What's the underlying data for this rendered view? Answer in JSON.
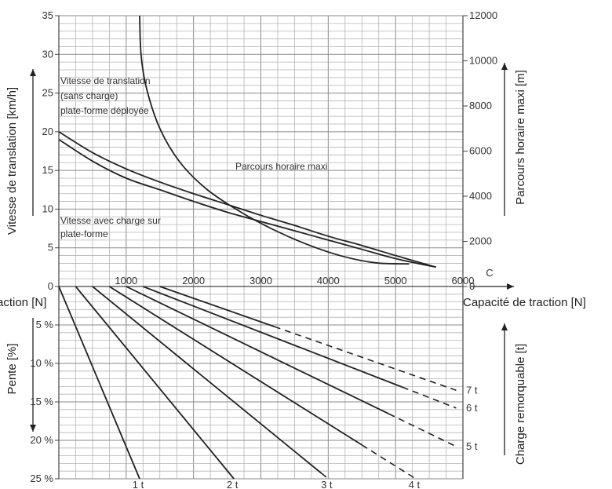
{
  "chart_data": [
    {
      "type": "line",
      "title": "",
      "xlabel": "Capacité de traction [N]",
      "x_axis_label_left": "action [N]",
      "x_axis_letter": "C",
      "xlim": [
        0,
        6000
      ],
      "ylim_left": [
        0,
        35
      ],
      "ylim_right": [
        0,
        12000
      ],
      "ylabel_left": "Vitesse de translation [km/h]",
      "ylabel_right": "Parcours horaire maxi [m]",
      "x_ticks": [
        "1000",
        "2000",
        "3000",
        "4000",
        "5000",
        "6000"
      ],
      "y_ticks_left": [
        "0",
        "5",
        "10",
        "15",
        "20",
        "25",
        "30",
        "35"
      ],
      "y_ticks_right": [
        "0",
        "2000",
        "4000",
        "6000",
        "8000",
        "10000",
        "12000"
      ],
      "annotations": {
        "speed_unloaded": "Vitesse de translation (sans charge) plate-forme déployée",
        "speed_loaded": "Vitesse avec charge sur plate-forme",
        "hourly_distance": "Parcours horaire maxi"
      },
      "series": [
        {
          "axis": "left",
          "x": [
            0,
            500,
            1000,
            1500,
            2000,
            2500,
            3000,
            3500,
            4000,
            4500,
            5000,
            5600
          ],
          "y": [
            20,
            17.3,
            15.2,
            13.5,
            12,
            10.6,
            9.2,
            7.9,
            6.5,
            5.3,
            4,
            2.5
          ]
        },
        {
          "axis": "left",
          "x": [
            0,
            500,
            1000,
            1500,
            2000,
            2500,
            3000,
            3500,
            4000,
            4500,
            5000,
            5600
          ],
          "y": [
            19,
            16.2,
            14,
            12.5,
            11,
            9.6,
            8.4,
            7.2,
            6,
            4.8,
            3.6,
            2.5
          ]
        },
        {
          "axis": "right",
          "x": [
            1200,
            1220,
            1300,
            1500,
            1800,
            2200,
            2700,
            3200,
            3700,
            4200,
            4700,
            5200
          ],
          "y": [
            12000,
            10300,
            8800,
            7000,
            5500,
            4300,
            3300,
            2500,
            1850,
            1350,
            1050,
            1000
          ]
        }
      ]
    },
    {
      "type": "line",
      "title": "",
      "xlim": [
        0,
        6000
      ],
      "ylim": [
        0,
        25
      ],
      "ylabel_left": "Pente [%]",
      "ylabel_right": "Charge remorquable [t]",
      "y_ticks": [
        "5 %",
        "10 %",
        "15 %",
        "20 %",
        "25 %"
      ],
      "series": [
        {
          "name": "1t",
          "x": [
            0,
            1200
          ],
          "y": [
            0,
            25
          ]
        },
        {
          "name": "2t",
          "x": [
            250,
            2600
          ],
          "y": [
            0,
            25
          ]
        },
        {
          "name": "3t",
          "x": [
            500,
            4000
          ],
          "y": [
            0,
            25
          ],
          "dashed_from": 3900
        },
        {
          "name": "4t",
          "x": [
            750,
            5300
          ],
          "y": [
            0,
            25
          ],
          "dashed_from": 4500
        },
        {
          "name": "5t",
          "x": [
            1000,
            5900
          ],
          "y": [
            0,
            20.8
          ],
          "dashed_from": 4900
        },
        {
          "name": "6t",
          "x": [
            1250,
            5900
          ],
          "y": [
            0,
            15.8
          ],
          "dashed_from": 5100
        },
        {
          "name": "7t",
          "x": [
            1500,
            5900
          ],
          "y": [
            0,
            13.5
          ],
          "dashed_from": 3200
        }
      ]
    }
  ]
}
